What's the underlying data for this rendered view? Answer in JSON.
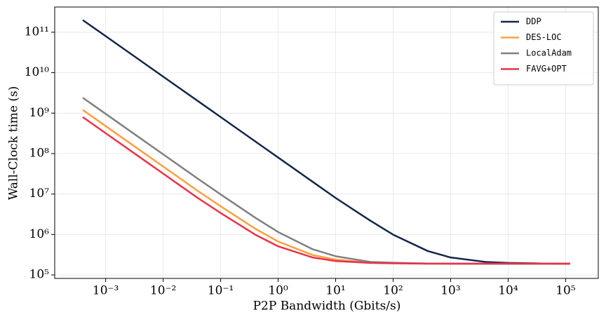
{
  "chart_data": {
    "type": "line",
    "x_label": "P2P Bandwidth (Gbits/s)",
    "y_label": "Wall-Clock time (s)",
    "x": [
      0.0004,
      0.001,
      0.004,
      0.01,
      0.04,
      0.1,
      0.4,
      1,
      4,
      10,
      40,
      100,
      400,
      1000,
      4000,
      10000,
      40000,
      120000
    ],
    "series": [
      {
        "name": "DDP",
        "color": "#14264a",
        "values": [
          200000000000,
          80000000000,
          20000000000,
          8000000000,
          2000000000,
          800000000,
          200000000,
          80000000,
          20000000,
          8000000,
          2200000,
          990000,
          390000,
          270000,
          210000,
          198000,
          192000,
          190000
        ]
      },
      {
        "name": "DES-LOC",
        "color": "#f9a03f",
        "values": [
          1200000000,
          480000000,
          120000000,
          48000000,
          12000000,
          4990000,
          1390000,
          670000,
          310000,
          240000,
          200000,
          195000,
          191000,
          190000,
          190000,
          190000,
          190000,
          190000
        ]
      },
      {
        "name": "LocalAdam",
        "color": "#808080",
        "values": [
          2400000000,
          960000000,
          240000000,
          96000000,
          24000000,
          9800000,
          2600000,
          1150000,
          430000,
          290000,
          210000,
          200000,
          192000,
          191000,
          190000,
          190000,
          190000,
          190000
        ]
      },
      {
        "name": "FAVG+OPT",
        "color": "#e8334a",
        "values": [
          800000000,
          320000000,
          80000000,
          32000000,
          8000000,
          3400000,
          990000,
          510000,
          270000,
          220000,
          198000,
          193000,
          190000,
          190000,
          190000,
          190000,
          190000,
          190000
        ]
      }
    ],
    "xscale": "log",
    "yscale": "log",
    "xlim": [
      0.00013,
      370000
    ],
    "ylim": [
      82000,
      420000000000
    ],
    "xticks": [
      {
        "value": 0.001,
        "label": "10⁻³"
      },
      {
        "value": 0.01,
        "label": "10⁻²"
      },
      {
        "value": 0.1,
        "label": "10⁻¹"
      },
      {
        "value": 1,
        "label": "10⁰"
      },
      {
        "value": 10,
        "label": "10¹"
      },
      {
        "value": 100,
        "label": "10²"
      },
      {
        "value": 1000,
        "label": "10³"
      },
      {
        "value": 10000,
        "label": "10⁴"
      },
      {
        "value": 100000,
        "label": "10⁵"
      }
    ],
    "yticks": [
      {
        "value": 100000,
        "label": "10⁵"
      },
      {
        "value": 1000000,
        "label": "10⁶"
      },
      {
        "value": 10000000,
        "label": "10⁷"
      },
      {
        "value": 100000000,
        "label": "10⁸"
      },
      {
        "value": 1000000000,
        "label": "10⁹"
      },
      {
        "value": 10000000000,
        "label": "10¹⁰"
      },
      {
        "value": 100000000000,
        "label": "10¹¹"
      }
    ],
    "grid": true,
    "legend": "upper right"
  }
}
